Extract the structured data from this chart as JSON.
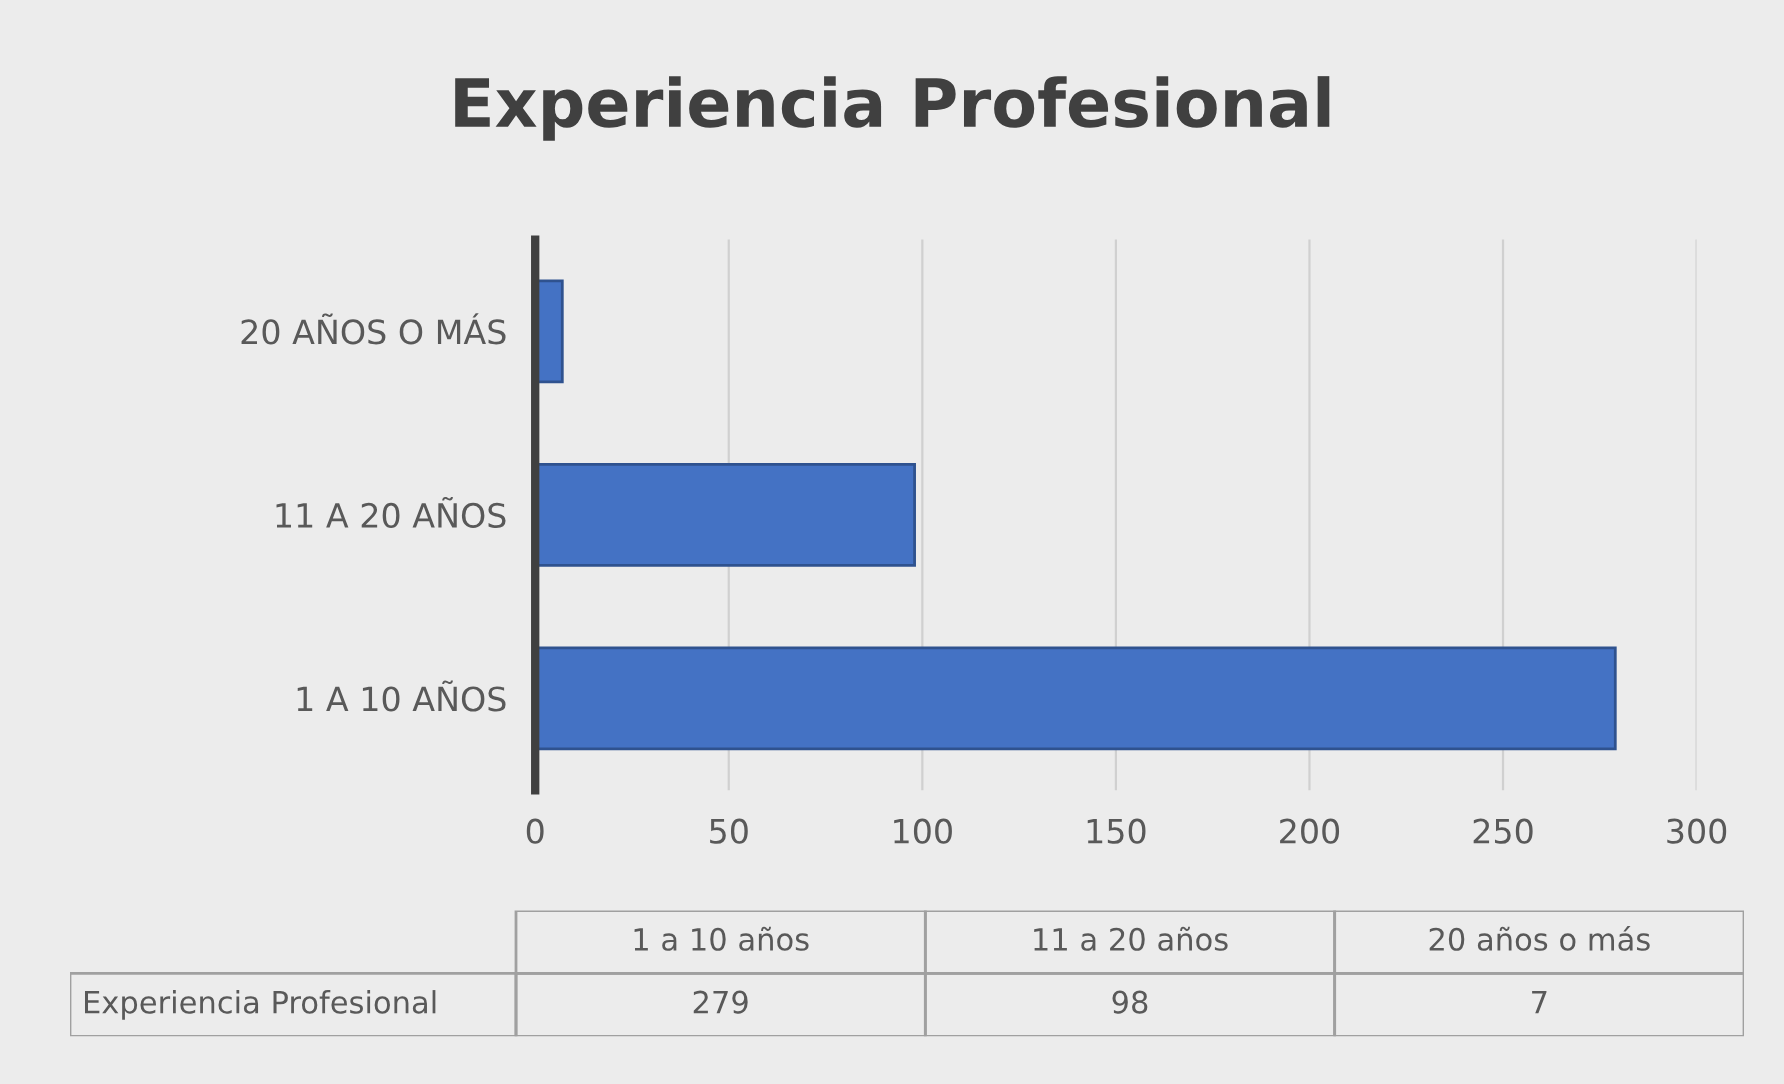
{
  "chart_data": {
    "type": "bar",
    "orientation": "horizontal",
    "title": "Experiencia Profesional",
    "categories": [
      "20 AÑOS O MÁS",
      "11 A 20 AÑOS",
      "1 A 10 AÑOS"
    ],
    "series": [
      {
        "name": "Experiencia Profesional",
        "color": "#4472c4",
        "values": [
          7,
          98,
          279
        ]
      }
    ],
    "xlim": [
      0,
      300
    ],
    "xticks": [
      0,
      50,
      100,
      150,
      200,
      250,
      300
    ],
    "grid": "x",
    "legend": false,
    "annotations": [
      "1 a 10 años",
      "11 a 20 años",
      "20 años o más",
      "279",
      "98",
      "7"
    ]
  }
}
